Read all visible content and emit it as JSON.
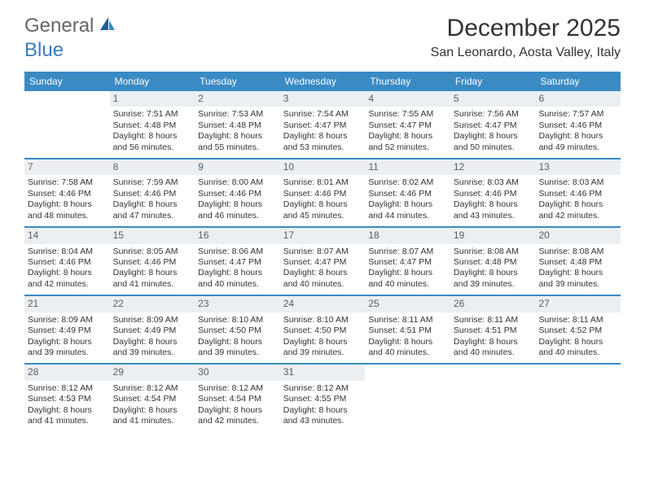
{
  "logo": {
    "text1": "General",
    "text2": "Blue"
  },
  "title": "December 2025",
  "location": "San Leonardo, Aosta Valley, Italy",
  "colors": {
    "header_bg": "#3a8ac4",
    "header_text": "#ffffff",
    "daynum_bg": "#eceff1",
    "daynum_text": "#565e66",
    "border": "#3a8ac4",
    "body_text": "#333333",
    "logo_gray": "#666666",
    "logo_blue": "#3a7ab8",
    "page_bg": "#ffffff"
  },
  "day_headers": [
    "Sunday",
    "Monday",
    "Tuesday",
    "Wednesday",
    "Thursday",
    "Friday",
    "Saturday"
  ],
  "weeks": [
    [
      {
        "day": "",
        "sunrise": "",
        "sunset": "",
        "daylight": ""
      },
      {
        "day": "1",
        "sunrise": "Sunrise: 7:51 AM",
        "sunset": "Sunset: 4:48 PM",
        "daylight": "Daylight: 8 hours and 56 minutes."
      },
      {
        "day": "2",
        "sunrise": "Sunrise: 7:53 AM",
        "sunset": "Sunset: 4:48 PM",
        "daylight": "Daylight: 8 hours and 55 minutes."
      },
      {
        "day": "3",
        "sunrise": "Sunrise: 7:54 AM",
        "sunset": "Sunset: 4:47 PM",
        "daylight": "Daylight: 8 hours and 53 minutes."
      },
      {
        "day": "4",
        "sunrise": "Sunrise: 7:55 AM",
        "sunset": "Sunset: 4:47 PM",
        "daylight": "Daylight: 8 hours and 52 minutes."
      },
      {
        "day": "5",
        "sunrise": "Sunrise: 7:56 AM",
        "sunset": "Sunset: 4:47 PM",
        "daylight": "Daylight: 8 hours and 50 minutes."
      },
      {
        "day": "6",
        "sunrise": "Sunrise: 7:57 AM",
        "sunset": "Sunset: 4:46 PM",
        "daylight": "Daylight: 8 hours and 49 minutes."
      }
    ],
    [
      {
        "day": "7",
        "sunrise": "Sunrise: 7:58 AM",
        "sunset": "Sunset: 4:46 PM",
        "daylight": "Daylight: 8 hours and 48 minutes."
      },
      {
        "day": "8",
        "sunrise": "Sunrise: 7:59 AM",
        "sunset": "Sunset: 4:46 PM",
        "daylight": "Daylight: 8 hours and 47 minutes."
      },
      {
        "day": "9",
        "sunrise": "Sunrise: 8:00 AM",
        "sunset": "Sunset: 4:46 PM",
        "daylight": "Daylight: 8 hours and 46 minutes."
      },
      {
        "day": "10",
        "sunrise": "Sunrise: 8:01 AM",
        "sunset": "Sunset: 4:46 PM",
        "daylight": "Daylight: 8 hours and 45 minutes."
      },
      {
        "day": "11",
        "sunrise": "Sunrise: 8:02 AM",
        "sunset": "Sunset: 4:46 PM",
        "daylight": "Daylight: 8 hours and 44 minutes."
      },
      {
        "day": "12",
        "sunrise": "Sunrise: 8:03 AM",
        "sunset": "Sunset: 4:46 PM",
        "daylight": "Daylight: 8 hours and 43 minutes."
      },
      {
        "day": "13",
        "sunrise": "Sunrise: 8:03 AM",
        "sunset": "Sunset: 4:46 PM",
        "daylight": "Daylight: 8 hours and 42 minutes."
      }
    ],
    [
      {
        "day": "14",
        "sunrise": "Sunrise: 8:04 AM",
        "sunset": "Sunset: 4:46 PM",
        "daylight": "Daylight: 8 hours and 42 minutes."
      },
      {
        "day": "15",
        "sunrise": "Sunrise: 8:05 AM",
        "sunset": "Sunset: 4:46 PM",
        "daylight": "Daylight: 8 hours and 41 minutes."
      },
      {
        "day": "16",
        "sunrise": "Sunrise: 8:06 AM",
        "sunset": "Sunset: 4:47 PM",
        "daylight": "Daylight: 8 hours and 40 minutes."
      },
      {
        "day": "17",
        "sunrise": "Sunrise: 8:07 AM",
        "sunset": "Sunset: 4:47 PM",
        "daylight": "Daylight: 8 hours and 40 minutes."
      },
      {
        "day": "18",
        "sunrise": "Sunrise: 8:07 AM",
        "sunset": "Sunset: 4:47 PM",
        "daylight": "Daylight: 8 hours and 40 minutes."
      },
      {
        "day": "19",
        "sunrise": "Sunrise: 8:08 AM",
        "sunset": "Sunset: 4:48 PM",
        "daylight": "Daylight: 8 hours and 39 minutes."
      },
      {
        "day": "20",
        "sunrise": "Sunrise: 8:08 AM",
        "sunset": "Sunset: 4:48 PM",
        "daylight": "Daylight: 8 hours and 39 minutes."
      }
    ],
    [
      {
        "day": "21",
        "sunrise": "Sunrise: 8:09 AM",
        "sunset": "Sunset: 4:49 PM",
        "daylight": "Daylight: 8 hours and 39 minutes."
      },
      {
        "day": "22",
        "sunrise": "Sunrise: 8:09 AM",
        "sunset": "Sunset: 4:49 PM",
        "daylight": "Daylight: 8 hours and 39 minutes."
      },
      {
        "day": "23",
        "sunrise": "Sunrise: 8:10 AM",
        "sunset": "Sunset: 4:50 PM",
        "daylight": "Daylight: 8 hours and 39 minutes."
      },
      {
        "day": "24",
        "sunrise": "Sunrise: 8:10 AM",
        "sunset": "Sunset: 4:50 PM",
        "daylight": "Daylight: 8 hours and 39 minutes."
      },
      {
        "day": "25",
        "sunrise": "Sunrise: 8:11 AM",
        "sunset": "Sunset: 4:51 PM",
        "daylight": "Daylight: 8 hours and 40 minutes."
      },
      {
        "day": "26",
        "sunrise": "Sunrise: 8:11 AM",
        "sunset": "Sunset: 4:51 PM",
        "daylight": "Daylight: 8 hours and 40 minutes."
      },
      {
        "day": "27",
        "sunrise": "Sunrise: 8:11 AM",
        "sunset": "Sunset: 4:52 PM",
        "daylight": "Daylight: 8 hours and 40 minutes."
      }
    ],
    [
      {
        "day": "28",
        "sunrise": "Sunrise: 8:12 AM",
        "sunset": "Sunset: 4:53 PM",
        "daylight": "Daylight: 8 hours and 41 minutes."
      },
      {
        "day": "29",
        "sunrise": "Sunrise: 8:12 AM",
        "sunset": "Sunset: 4:54 PM",
        "daylight": "Daylight: 8 hours and 41 minutes."
      },
      {
        "day": "30",
        "sunrise": "Sunrise: 8:12 AM",
        "sunset": "Sunset: 4:54 PM",
        "daylight": "Daylight: 8 hours and 42 minutes."
      },
      {
        "day": "31",
        "sunrise": "Sunrise: 8:12 AM",
        "sunset": "Sunset: 4:55 PM",
        "daylight": "Daylight: 8 hours and 43 minutes."
      },
      {
        "day": "",
        "sunrise": "",
        "sunset": "",
        "daylight": ""
      },
      {
        "day": "",
        "sunrise": "",
        "sunset": "",
        "daylight": ""
      },
      {
        "day": "",
        "sunrise": "",
        "sunset": "",
        "daylight": ""
      }
    ]
  ]
}
